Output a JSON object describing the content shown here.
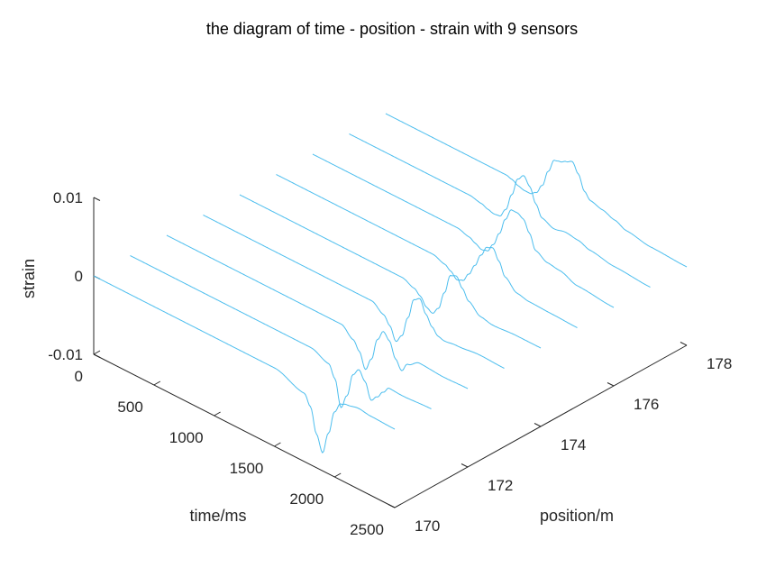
{
  "chart_data": {
    "type": "line",
    "subtype": "3d-waterfall",
    "title": "the diagram of time - position - strain with 9 sensors",
    "xlabel": "time/ms",
    "ylabel": "position/m",
    "zlabel": "strain",
    "xlim": [
      0,
      2500
    ],
    "ylim": [
      170,
      178
    ],
    "zlim": [
      -0.01,
      0.01
    ],
    "x_ticks": [
      "0",
      "500",
      "1000",
      "1500",
      "2000",
      "2500"
    ],
    "y_ticks": [
      "170",
      "172",
      "174",
      "176",
      "178"
    ],
    "z_ticks": [
      "-0.01",
      "0",
      "0.01"
    ],
    "line_color": "#4DBEEE",
    "grid": false,
    "series": [
      {
        "position": 170,
        "time": [
          0,
          1500,
          1750,
          1800,
          1850,
          1900,
          1950,
          2000,
          2050,
          2100,
          2200,
          2300,
          2500
        ],
        "strain": [
          0,
          0,
          -0.0013,
          -0.0026,
          -0.0057,
          -0.0077,
          -0.0048,
          -0.0017,
          -0.0003,
          0.0,
          0.0003,
          0.0001,
          0
        ]
      },
      {
        "position": 171,
        "time": [
          0,
          1500,
          1650,
          1700,
          1750,
          1800,
          1850,
          1900,
          1950,
          2000,
          2050,
          2100,
          2150,
          2250,
          2500
        ],
        "strain": [
          0,
          0,
          -0.0009,
          -0.0024,
          -0.0057,
          -0.0038,
          -0.0007,
          0.0003,
          -0.0008,
          -0.0028,
          -0.002,
          -0.001,
          -0.0001,
          -0.0002,
          0
        ]
      },
      {
        "position": 172,
        "time": [
          0,
          1450,
          1550,
          1600,
          1650,
          1700,
          1750,
          1800,
          1850,
          1900,
          1950,
          2000,
          2100,
          2300,
          2500
        ],
        "strain": [
          0,
          0,
          -0.0012,
          -0.0023,
          -0.0042,
          -0.0025,
          0.0004,
          0.0018,
          0.001,
          -0.0009,
          -0.002,
          -0.0008,
          0.0001,
          -0.0001,
          0
        ]
      },
      {
        "position": 173,
        "time": [
          0,
          1400,
          1500,
          1550,
          1600,
          1650,
          1700,
          1750,
          1800,
          1850,
          1900,
          1950,
          2000,
          2100,
          2300,
          2500
        ],
        "strain": [
          0,
          0,
          -0.001,
          -0.002,
          -0.0036,
          -0.0025,
          0.0002,
          0.0029,
          0.0034,
          0.0018,
          0.0006,
          -0.0002,
          -0.0004,
          -0.0002,
          0.0001,
          0
        ]
      },
      {
        "position": 174,
        "time": [
          0,
          1350,
          1450,
          1500,
          1550,
          1600,
          1650,
          1700,
          1750,
          1800,
          1850,
          1900,
          2000,
          2100,
          2300,
          2500
        ],
        "strain": [
          0,
          0,
          -0.0006,
          -0.0012,
          -0.0022,
          -0.0026,
          -0.0016,
          0.0008,
          0.0034,
          0.0037,
          0.0025,
          0.0013,
          0.0001,
          -0.0002,
          0.0,
          0
        ]
      },
      {
        "position": 175,
        "time": [
          0,
          1300,
          1400,
          1450,
          1500,
          1550,
          1600,
          1650,
          1700,
          1750,
          1800,
          1850,
          1900,
          2000,
          2100,
          2300,
          2500
        ],
        "strain": [
          0,
          0,
          -0.0005,
          -0.001,
          -0.0017,
          -0.0014,
          -0.0002,
          0.0013,
          0.003,
          0.0044,
          0.0047,
          0.0034,
          0.0018,
          0.0005,
          0.0002,
          0.0001,
          0
        ]
      },
      {
        "position": 176,
        "time": [
          0,
          1200,
          1300,
          1350,
          1400,
          1450,
          1500,
          1550,
          1600,
          1650,
          1700,
          1750,
          1800,
          1850,
          1950,
          2050,
          2200,
          2500
        ],
        "strain": [
          0,
          0,
          -0.0004,
          -0.0008,
          -0.0012,
          -0.001,
          0.0002,
          0.002,
          0.0042,
          0.0058,
          0.0058,
          0.0054,
          0.004,
          0.0022,
          0.0014,
          0.0012,
          0.0004,
          0
        ]
      },
      {
        "position": 177,
        "time": [
          0,
          1000,
          1100,
          1150,
          1200,
          1250,
          1300,
          1350,
          1400,
          1450,
          1500,
          1550,
          1600,
          1700,
          1800,
          1900,
          2000,
          2200,
          2500
        ],
        "strain": [
          0,
          0,
          -0.0003,
          -0.0006,
          -0.0008,
          -0.0007,
          0.0005,
          0.0028,
          0.0052,
          0.006,
          0.005,
          0.0032,
          0.0018,
          0.0012,
          0.0015,
          0.0013,
          0.0008,
          0.0003,
          0
        ]
      },
      {
        "position": 178,
        "time": [
          0,
          1000,
          1050,
          1100,
          1150,
          1200,
          1250,
          1300,
          1350,
          1400,
          1450,
          1500,
          1550,
          1600,
          1650,
          1700,
          1800,
          1900,
          2000,
          2200,
          2500
        ],
        "strain": [
          0,
          0,
          -0.0002,
          -0.0006,
          -0.0008,
          -0.0008,
          -0.0003,
          0.001,
          0.0032,
          0.005,
          0.0052,
          0.0056,
          0.006,
          0.0048,
          0.003,
          0.0022,
          0.0018,
          0.0013,
          0.0007,
          0.0002,
          0
        ]
      }
    ]
  }
}
